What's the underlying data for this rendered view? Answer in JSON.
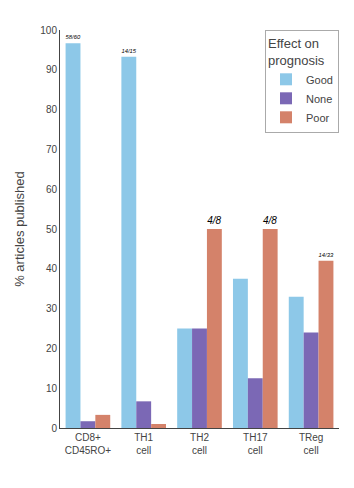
{
  "chart_data": {
    "type": "bar",
    "ylabel": "% articles published",
    "categories": [
      "CD8+\nCD45RO+",
      "TH1\ncell",
      "TH2\ncell",
      "TH17\ncell",
      "TReg\ncell"
    ],
    "series": [
      {
        "name": "Good",
        "color": "#8DC8E8",
        "values": [
          96.7,
          93.3,
          25.0,
          37.5,
          33.0
        ]
      },
      {
        "name": "None",
        "color": "#7B68B5",
        "values": [
          1.7,
          6.7,
          25.0,
          12.5,
          24.0
        ]
      },
      {
        "name": "Poor",
        "color": "#D4826A",
        "values": [
          3.3,
          1.0,
          50.0,
          50.0,
          42.0
        ]
      }
    ],
    "annotations": [
      {
        "text": "58/60",
        "category": "CD8+\nCD45RO+",
        "series": "Good"
      },
      {
        "text": "14/15",
        "category": "TH1\ncell",
        "series": "Good"
      },
      {
        "text": "4/8",
        "category": "TH2\ncell",
        "series": "Poor"
      },
      {
        "text": "4/8",
        "category": "TH17\ncell",
        "series": "Poor"
      },
      {
        "text": "14/33",
        "category": "TReg\ncell",
        "series": "Poor"
      }
    ],
    "legend_title": "Effect on\nprognosis",
    "legend": "upper right",
    "ylim": [
      0,
      100
    ],
    "yticks": [
      0,
      10,
      20,
      30,
      40,
      50,
      60,
      70,
      80,
      90,
      100
    ],
    "grid": false
  }
}
